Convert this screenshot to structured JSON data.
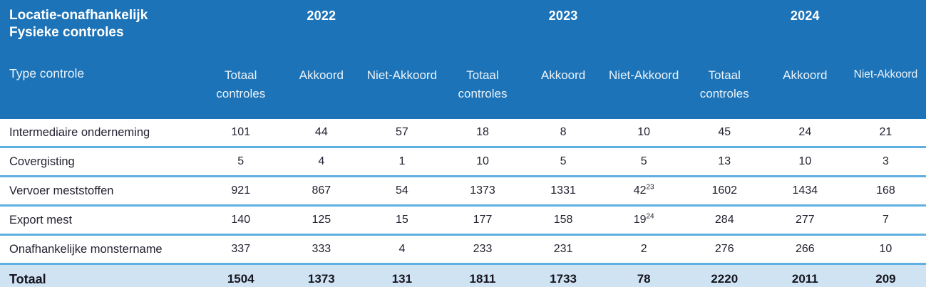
{
  "table": {
    "title_line1": "Locatie-onafhankelijk",
    "title_line2": "Fysieke controles",
    "type_header": "Type controle",
    "year_groups": [
      "2022",
      "2023",
      "2024"
    ],
    "sub_headers": [
      "Totaal controles",
      "Akkoord",
      "Niet-Akkoord"
    ],
    "rows": [
      {
        "label": "Intermediaire onderneming",
        "cells": [
          {
            "v": "101"
          },
          {
            "v": "44"
          },
          {
            "v": "57"
          },
          {
            "v": "18"
          },
          {
            "v": "8"
          },
          {
            "v": "10"
          },
          {
            "v": "45"
          },
          {
            "v": "24"
          },
          {
            "v": "21"
          }
        ]
      },
      {
        "label": "Covergisting",
        "cells": [
          {
            "v": "5"
          },
          {
            "v": "4"
          },
          {
            "v": "1"
          },
          {
            "v": "10"
          },
          {
            "v": "5"
          },
          {
            "v": "5"
          },
          {
            "v": "13"
          },
          {
            "v": "10"
          },
          {
            "v": "3"
          }
        ]
      },
      {
        "label": "Vervoer meststoffen",
        "cells": [
          {
            "v": "921"
          },
          {
            "v": "867"
          },
          {
            "v": "54"
          },
          {
            "v": "1373"
          },
          {
            "v": "1331"
          },
          {
            "v": "42",
            "sup": "23"
          },
          {
            "v": "1602"
          },
          {
            "v": "1434"
          },
          {
            "v": "168"
          }
        ]
      },
      {
        "label": "Export mest",
        "cells": [
          {
            "v": "140"
          },
          {
            "v": "125"
          },
          {
            "v": "15"
          },
          {
            "v": "177"
          },
          {
            "v": "158"
          },
          {
            "v": "19",
            "sup": "24"
          },
          {
            "v": "284"
          },
          {
            "v": "277"
          },
          {
            "v": "7"
          }
        ]
      },
      {
        "label": "Onafhankelijke monstername",
        "cells": [
          {
            "v": "337"
          },
          {
            "v": "333"
          },
          {
            "v": "4"
          },
          {
            "v": "233"
          },
          {
            "v": "231"
          },
          {
            "v": "2"
          },
          {
            "v": "276"
          },
          {
            "v": "266"
          },
          {
            "v": "10"
          }
        ]
      }
    ],
    "total_row": {
      "label": "Totaal",
      "cells": [
        {
          "v": "1504"
        },
        {
          "v": "1373"
        },
        {
          "v": "131"
        },
        {
          "v": "1811"
        },
        {
          "v": "1733"
        },
        {
          "v": "78"
        },
        {
          "v": "2220"
        },
        {
          "v": "2011"
        },
        {
          "v": "209"
        }
      ]
    },
    "colors": {
      "header_bg": "#1d73b7",
      "header_text": "#ffffff",
      "body_text": "#232231",
      "row_divider": "#5fafe0",
      "total_row_bg": "#cfe3f2",
      "total_border_top": "#4aa0d8",
      "total_border_bottom": "#2f8fce"
    }
  }
}
